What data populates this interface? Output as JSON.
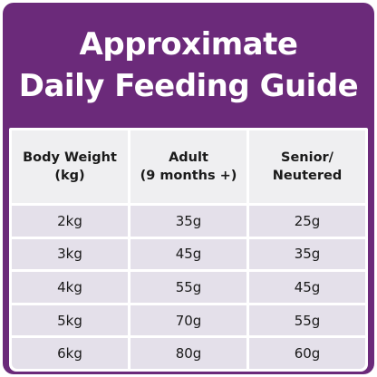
{
  "title": {
    "line1": "Approximate",
    "line2": "Daily Feeding Guide"
  },
  "colors": {
    "brand_purple": "#6b2a7a",
    "header_cell": "#efeff1",
    "body_cell": "#e4e0ea",
    "text": "#1a1a1a"
  },
  "table": {
    "headers": [
      {
        "line1": "Body Weight",
        "line2": "(kg)"
      },
      {
        "line1": "Adult",
        "line2": "(9 months +)"
      },
      {
        "line1": "Senior/",
        "line2": "Neutered"
      }
    ],
    "rows": [
      [
        "2kg",
        "35g",
        "25g"
      ],
      [
        "3kg",
        "45g",
        "35g"
      ],
      [
        "4kg",
        "55g",
        "45g"
      ],
      [
        "5kg",
        "70g",
        "55g"
      ],
      [
        "6kg",
        "80g",
        "60g"
      ]
    ]
  }
}
